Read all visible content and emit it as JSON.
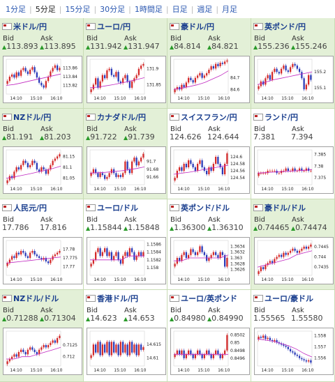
{
  "tabs": [
    {
      "label": "1分足",
      "active": false
    },
    {
      "label": "5分足",
      "active": true
    },
    {
      "label": "15分足",
      "active": false
    },
    {
      "label": "30分足",
      "active": false
    },
    {
      "label": "1時間足",
      "active": false
    },
    {
      "label": "日足",
      "active": false
    },
    {
      "label": "週足",
      "active": false
    },
    {
      "label": "月足",
      "active": false
    }
  ],
  "labels": {
    "bid": "Bid",
    "ask": "Ask",
    "up_arrow": "▲"
  },
  "colors": {
    "up": "#d42a2a",
    "down": "#2b3bb8",
    "ma": "#c027c0",
    "arrow": "#2a9a2a",
    "title": "#1a3e8e",
    "panel": "#e3f0d7"
  },
  "pairs": [
    {
      "name": "米ドル/円",
      "bid": "113.893",
      "ask": "113.895",
      "bid_up": true,
      "ask_up": true,
      "green": true,
      "chart_data": {
        "type": "candlestick",
        "x_ticks": [
          "14:10",
          "15:10",
          "16:10"
        ],
        "y_ticks": [
          "113.86",
          "113.84",
          "113.82"
        ],
        "ylim": [
          113.8,
          113.88
        ],
        "ma": [
          113.82,
          113.822,
          113.826,
          113.83,
          113.834,
          113.838,
          113.842,
          113.846
        ],
        "close": [
          113.83,
          113.84,
          113.845,
          113.838,
          113.85,
          113.842,
          113.855,
          113.86,
          113.852,
          113.846,
          113.856,
          113.862,
          113.85,
          113.838,
          113.826,
          113.82,
          113.815,
          113.83,
          113.84,
          113.852,
          113.86,
          113.866,
          113.855,
          113.86
        ]
      }
    },
    {
      "name": "ユーロ/円",
      "bid": "131.942",
      "ask": "131.947",
      "bid_up": true,
      "ask_up": true,
      "green": true,
      "chart_data": {
        "type": "candlestick",
        "x_ticks": [
          "14:10",
          "15:10",
          "16:10"
        ],
        "y_ticks": [
          "131.9",
          "131.85"
        ],
        "ylim": [
          131.82,
          131.93
        ],
        "ma": [
          131.84,
          131.842,
          131.846,
          131.85,
          131.855,
          131.86,
          131.866,
          131.872
        ],
        "close": [
          131.835,
          131.85,
          131.87,
          131.84,
          131.86,
          131.88,
          131.87,
          131.895,
          131.9,
          131.88,
          131.875,
          131.89,
          131.86,
          131.855,
          131.87,
          131.88,
          131.86,
          131.84,
          131.86,
          131.87,
          131.88,
          131.9,
          131.91,
          131.915
        ]
      }
    },
    {
      "name": "豪ドル/円",
      "bid": "84.814",
      "ask": "84.821",
      "bid_up": true,
      "ask_up": true,
      "green": true,
      "chart_data": {
        "type": "candlestick",
        "x_ticks": [
          "14:10",
          "15:10",
          "16:10"
        ],
        "y_ticks": [
          "84.7",
          "84.6"
        ],
        "ylim": [
          84.56,
          84.86
        ],
        "ma": [
          84.6,
          84.612,
          84.625,
          84.64,
          84.66,
          84.69,
          84.72,
          84.76
        ],
        "close": [
          84.6,
          84.62,
          84.6,
          84.64,
          84.62,
          84.66,
          84.7,
          84.68,
          84.66,
          84.7,
          84.72,
          84.74,
          84.7,
          84.72,
          84.74,
          84.77,
          84.8,
          84.78,
          84.82,
          84.8,
          84.83,
          84.82,
          84.84,
          84.85
        ]
      }
    },
    {
      "name": "英ポンド/円",
      "bid": "155.236",
      "ask": "155.246",
      "bid_up": true,
      "ask_up": true,
      "green": true,
      "chart_data": {
        "type": "candlestick",
        "x_ticks": [
          "14:10",
          "15:10",
          "16:10"
        ],
        "y_ticks": [
          "155.2",
          "155.1"
        ],
        "ylim": [
          155.06,
          155.28
        ],
        "ma": [
          155.12,
          155.135,
          155.15,
          155.16,
          155.17,
          155.18,
          155.19,
          155.2
        ],
        "close": [
          155.11,
          155.14,
          155.12,
          155.16,
          155.18,
          155.15,
          155.2,
          155.22,
          155.2,
          155.19,
          155.22,
          155.24,
          155.21,
          155.2,
          155.23,
          155.25,
          155.24,
          155.22,
          155.2,
          155.16,
          155.09,
          155.12,
          155.18,
          155.15
        ]
      }
    },
    {
      "name": "NZドル/円",
      "bid": "81.191",
      "ask": "81.203",
      "bid_up": true,
      "ask_up": true,
      "green": true,
      "chart_data": {
        "type": "candlestick",
        "x_ticks": [
          "14:10",
          "15:10",
          "16:10"
        ],
        "y_ticks": [
          "81.15",
          "81.1",
          "81.05"
        ],
        "ylim": [
          81.02,
          81.18
        ],
        "ma": [
          81.05,
          81.056,
          81.063,
          81.07,
          81.078,
          81.086,
          81.095,
          81.105
        ],
        "close": [
          81.04,
          81.06,
          81.05,
          81.08,
          81.1,
          81.09,
          81.11,
          81.13,
          81.12,
          81.1,
          81.11,
          81.13,
          81.12,
          81.09,
          81.08,
          81.1,
          81.09,
          81.07,
          81.09,
          81.11,
          81.13,
          81.14,
          81.15,
          81.16
        ]
      }
    },
    {
      "name": "カナダドル/円",
      "bid": "91.722",
      "ask": "91.739",
      "bid_up": true,
      "ask_up": true,
      "green": true,
      "chart_data": {
        "type": "candlestick",
        "x_ticks": [
          "14:10",
          "15:10",
          "16:10"
        ],
        "y_ticks": [
          "91.7",
          "91.68",
          "91.66"
        ],
        "ylim": [
          91.64,
          91.73
        ],
        "ma": [
          91.67,
          91.671,
          91.672,
          91.674,
          91.676,
          91.679,
          91.682,
          91.686
        ],
        "close": [
          91.67,
          91.68,
          91.67,
          91.66,
          91.67,
          91.665,
          91.655,
          91.66,
          91.67,
          91.68,
          91.67,
          91.66,
          91.665,
          91.66,
          91.67,
          91.7,
          91.68,
          91.67,
          91.7,
          91.71,
          91.69,
          91.7,
          91.71,
          91.72
        ]
      }
    },
    {
      "name": "スイスフラン/円",
      "bid": "124.626",
      "ask": "124.644",
      "bid_up": false,
      "ask_up": false,
      "green": false,
      "chart_data": {
        "type": "candlestick",
        "x_ticks": [
          "14:10",
          "15:10",
          "16:10"
        ],
        "y_ticks": [
          "124.6",
          "124.58",
          "124.56",
          "124.54"
        ],
        "ylim": [
          124.52,
          124.62
        ],
        "ma": [
          124.55,
          124.553,
          124.556,
          124.56,
          124.564,
          124.568,
          124.572,
          124.576
        ],
        "close": [
          124.54,
          124.56,
          124.57,
          124.56,
          124.58,
          124.57,
          124.59,
          124.58,
          124.57,
          124.56,
          124.58,
          124.59,
          124.57,
          124.56,
          124.55,
          124.57,
          124.56,
          124.58,
          124.6,
          124.58,
          124.57,
          124.55,
          124.58,
          124.61
        ]
      }
    },
    {
      "name": "ランド/円",
      "bid": "7.381",
      "ask": "7.394",
      "bid_up": false,
      "ask_up": false,
      "green": false,
      "chart_data": {
        "type": "candlestick",
        "x_ticks": [
          "14:10",
          "15:10",
          "16:10"
        ],
        "y_ticks": [
          "7.385",
          "7.38",
          "7.375"
        ],
        "ylim": [
          7.372,
          7.387
        ],
        "ma": [
          7.377,
          7.3772,
          7.3774,
          7.3776,
          7.3778,
          7.378,
          7.3782,
          7.3785
        ],
        "close": [
          7.377,
          7.377,
          7.377,
          7.377,
          7.378,
          7.378,
          7.378,
          7.378,
          7.377,
          7.377,
          7.378,
          7.378,
          7.379,
          7.378,
          7.378,
          7.379,
          7.378,
          7.378,
          7.379,
          7.378,
          7.378,
          7.379,
          7.378,
          7.378
        ]
      }
    },
    {
      "name": "人民元/円",
      "bid": "17.786",
      "ask": "17.816",
      "bid_up": false,
      "ask_up": false,
      "green": false,
      "chart_data": {
        "type": "candlestick",
        "x_ticks": [
          "14:10",
          "15:10",
          "16:10"
        ],
        "y_ticks": [
          "17.78",
          "17.775",
          "17.77"
        ],
        "ylim": [
          17.765,
          17.785
        ],
        "ma": [
          17.772,
          17.7725,
          17.773,
          17.7735,
          17.774,
          17.7745,
          17.775,
          17.7755
        ],
        "close": [
          17.772,
          17.774,
          17.776,
          17.775,
          17.778,
          17.777,
          17.779,
          17.778,
          17.776,
          17.775,
          17.778,
          17.779,
          17.777,
          17.776,
          17.775,
          17.774,
          17.775,
          17.773,
          17.772,
          17.774,
          17.776,
          17.777,
          17.778,
          17.779
        ]
      }
    },
    {
      "name": "ユーロ/ドル",
      "bid": "1.15844",
      "ask": "1.15848",
      "bid_up": true,
      "ask_up": true,
      "green": false,
      "chart_data": {
        "type": "candlestick",
        "x_ticks": [
          "14:10",
          "15:10",
          "16:10"
        ],
        "y_ticks": [
          "1.1586",
          "1.1584",
          "1.1582",
          "1.158"
        ],
        "ylim": [
          1.1578,
          1.1587
        ],
        "ma": [
          1.1582,
          1.1582,
          1.1582,
          1.1582,
          1.1582,
          1.1583,
          1.1583,
          1.1583
        ],
        "close": [
          1.1581,
          1.1582,
          1.1584,
          1.1585,
          1.1583,
          1.1584,
          1.1585,
          1.1583,
          1.1584,
          1.1582,
          1.1583,
          1.1584,
          1.1582,
          1.1581,
          1.1583,
          1.1584,
          1.1583,
          1.1585,
          1.1584,
          1.1582,
          1.1583,
          1.1584,
          1.1583,
          1.1584
        ]
      }
    },
    {
      "name": "英ポンド/ドル",
      "bid": "1.36300",
      "ask": "1.36310",
      "bid_up": true,
      "ask_up": true,
      "green": false,
      "chart_data": {
        "type": "candlestick",
        "x_ticks": [
          "14:10",
          "15:10",
          "16:10"
        ],
        "y_ticks": [
          "1.3634",
          "1.3632",
          "1.363",
          "1.3628",
          "1.3626"
        ],
        "ylim": [
          1.3624,
          1.3636
        ],
        "ma": [
          1.3629,
          1.3629,
          1.363,
          1.363,
          1.363,
          1.363,
          1.363,
          1.3631
        ],
        "close": [
          1.3628,
          1.363,
          1.3629,
          1.3631,
          1.3632,
          1.363,
          1.3631,
          1.3633,
          1.3632,
          1.3631,
          1.3632,
          1.3634,
          1.3632,
          1.3631,
          1.3629,
          1.363,
          1.3631,
          1.3632,
          1.3631,
          1.363,
          1.3632,
          1.3631,
          1.3627,
          1.363
        ]
      }
    },
    {
      "name": "豪ドル/ドル",
      "bid": "0.74465",
      "ask": "0.74474",
      "bid_up": true,
      "ask_up": true,
      "green": true,
      "chart_data": {
        "type": "candlestick",
        "x_ticks": [
          "14:10",
          "15:10",
          "16:10"
        ],
        "y_ticks": [
          "0.7445",
          "0.744",
          "0.7435"
        ],
        "ylim": [
          0.7431,
          0.7448
        ],
        "ma": [
          0.7435,
          0.7436,
          0.7437,
          0.7438,
          0.7439,
          0.7441,
          0.7442,
          0.7443
        ],
        "close": [
          0.7433,
          0.7435,
          0.7434,
          0.7436,
          0.7437,
          0.7438,
          0.7437,
          0.7439,
          0.744,
          0.7441,
          0.744,
          0.7442,
          0.7441,
          0.7442,
          0.7443,
          0.7444,
          0.7443,
          0.7442,
          0.7443,
          0.7444,
          0.7445,
          0.7444,
          0.7445,
          0.7446
        ]
      }
    },
    {
      "name": "NZドル/ドル",
      "bid": "0.71288",
      "ask": "0.71304",
      "bid_up": true,
      "ask_up": true,
      "green": true,
      "chart_data": {
        "type": "candlestick",
        "x_ticks": [
          "14:10",
          "15:10",
          "16:10"
        ],
        "y_ticks": [
          "0.7125",
          "0.712"
        ],
        "ylim": [
          0.7116,
          0.7131
        ],
        "ma": [
          0.7119,
          0.7119,
          0.712,
          0.712,
          0.7121,
          0.7122,
          0.7123,
          0.7124
        ],
        "close": [
          0.7118,
          0.7119,
          0.712,
          0.7121,
          0.712,
          0.7122,
          0.7123,
          0.7122,
          0.7121,
          0.7123,
          0.7124,
          0.7123,
          0.7122,
          0.7121,
          0.7123,
          0.7124,
          0.7125,
          0.7124,
          0.7125,
          0.7126,
          0.7127,
          0.7126,
          0.7128,
          0.7129
        ]
      }
    },
    {
      "name": "香港ドル/円",
      "bid": "14.623",
      "ask": "14.653",
      "bid_up": true,
      "ask_up": true,
      "green": false,
      "chart_data": {
        "type": "candlestick",
        "x_ticks": [
          "14:10",
          "15:10",
          "16:10"
        ],
        "y_ticks": [
          "14.615",
          "14.61"
        ],
        "ylim": [
          14.607,
          14.62
        ],
        "ma": [],
        "close": [
          14.611,
          14.615,
          14.612,
          14.616,
          14.611,
          14.615,
          14.612,
          14.616,
          14.611,
          14.616,
          14.612,
          14.615,
          14.611,
          14.616,
          14.612,
          14.615,
          14.611,
          14.616,
          14.612,
          14.615,
          14.611,
          14.615,
          14.613,
          14.614
        ]
      }
    },
    {
      "name": "ユーロ/英ポンド",
      "bid": "0.84980",
      "ask": "0.84990",
      "bid_up": true,
      "ask_up": true,
      "green": false,
      "chart_data": {
        "type": "candlestick",
        "x_ticks": [
          "14:10",
          "15:10",
          "16:10"
        ],
        "y_ticks": [
          "0.8502",
          "0.85",
          "0.8498",
          "0.8496"
        ],
        "ylim": [
          0.8494,
          0.8503
        ],
        "ma": [
          0.8497,
          0.8497,
          0.8497,
          0.8497,
          0.8497,
          0.8497,
          0.8497,
          0.8497
        ],
        "close": [
          0.8497,
          0.8498,
          0.8497,
          0.8498,
          0.8496,
          0.8497,
          0.8498,
          0.8497,
          0.8496,
          0.8497,
          0.8498,
          0.8497,
          0.8496,
          0.8497,
          0.8498,
          0.8497,
          0.8496,
          0.8497,
          0.8498,
          0.8497,
          0.8496,
          0.8497,
          0.8498,
          0.8502
        ]
      }
    },
    {
      "name": "ユーロ/豪ドル",
      "bid": "1.55565",
      "ask": "1.55580",
      "bid_up": false,
      "ask_up": false,
      "green": false,
      "chart_data": {
        "type": "candlestick",
        "x_ticks": [
          "14:10",
          "15:10",
          "16:10"
        ],
        "y_ticks": [
          "1.558",
          "1.557",
          "1.556"
        ],
        "ylim": [
          1.5553,
          1.5584
        ],
        "ma": [
          1.5577,
          1.5576,
          1.5575,
          1.5573,
          1.5571,
          1.5568,
          1.5564,
          1.5561
        ],
        "close": [
          1.5579,
          1.5578,
          1.558,
          1.5577,
          1.5578,
          1.5576,
          1.5575,
          1.5576,
          1.5574,
          1.5573,
          1.5572,
          1.5571,
          1.557,
          1.5568,
          1.5566,
          1.5565,
          1.5563,
          1.5562,
          1.556,
          1.5559,
          1.5558,
          1.5557,
          1.5558,
          1.5556
        ]
      }
    }
  ]
}
